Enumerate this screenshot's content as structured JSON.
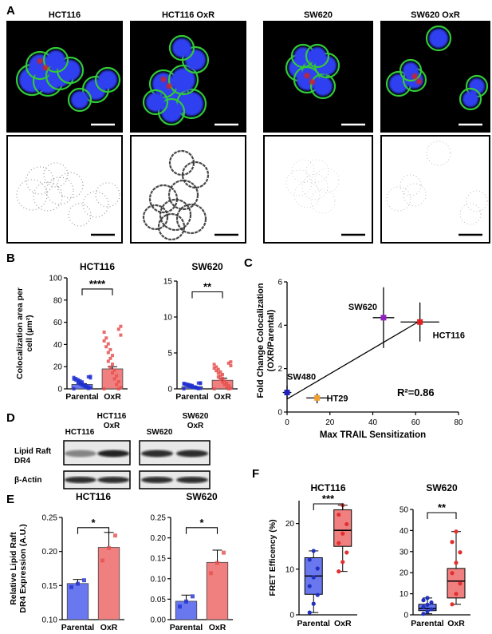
{
  "panel_labels": {
    "a": "A",
    "b": "B",
    "c": "C",
    "d": "D",
    "e": "E",
    "f": "F"
  },
  "micro": {
    "titles": [
      "HCT116",
      "HCT116 OxR",
      "SW620",
      "SW620 OxR"
    ],
    "colors": {
      "nucleus": "#2f3ff0",
      "membrane": "#33cc33",
      "raft": "#d02020"
    }
  },
  "chart_data": [
    {
      "id": "B1",
      "type": "bar",
      "title": "HCT116",
      "ylabel": "Colocalization area per cell (µm²)",
      "categories": [
        "Parental",
        "OxR"
      ],
      "values": [
        4,
        18
      ],
      "errors": [
        0.6,
        2.0
      ],
      "ylim": [
        0,
        100
      ],
      "yticks": [
        "0",
        "20",
        "40",
        "60",
        "80",
        "100"
      ],
      "sig": "****",
      "colors": [
        "#6a78f0",
        "#f08080"
      ]
    },
    {
      "id": "B2",
      "type": "bar",
      "title": "SW620",
      "ylabel": "",
      "categories": [
        "Parental",
        "OxR"
      ],
      "values": [
        0.3,
        1.2
      ],
      "errors": [
        0.1,
        0.3
      ],
      "ylim": [
        0,
        15
      ],
      "yticks": [
        "0",
        "5",
        "10",
        "15"
      ],
      "sig": "**",
      "colors": [
        "#6a78f0",
        "#f08080"
      ]
    },
    {
      "id": "C",
      "type": "scatter",
      "title": "",
      "xlabel": "Max TRAIL Sensitization",
      "ylabel": "Fold Change Colocalization (OXR/Parental)",
      "xlim": [
        0,
        80
      ],
      "ylim": [
        0,
        6
      ],
      "xticks": [
        "0",
        "20",
        "40",
        "60",
        "80"
      ],
      "yticks": [
        "0",
        "2",
        "4",
        "6"
      ],
      "annotation": "R²=0.86",
      "points": [
        {
          "label": "SW480",
          "x": 0,
          "y": 0.9,
          "color": "#2020c0"
        },
        {
          "label": "HT29",
          "x": 14,
          "y": 0.65,
          "color": "#f0a030"
        },
        {
          "label": "SW620",
          "x": 45,
          "y": 4.35,
          "color": "#9020c0"
        },
        {
          "label": "HCT116",
          "x": 62,
          "y": 4.15,
          "color": "#e02020"
        }
      ]
    },
    {
      "id": "E1",
      "type": "bar",
      "title": "HCT116",
      "ylabel": "Relative Lipid Raft DR4 Expression (A.U.)",
      "categories": [
        "Parental",
        "OxR"
      ],
      "values": [
        0.153,
        0.206
      ],
      "errors": [
        0.006,
        0.022
      ],
      "ylim": [
        0.1,
        0.25
      ],
      "yticks": [
        "0.10",
        "0.15",
        "0.20",
        "0.25"
      ],
      "sig": "*",
      "colors": [
        "#6a78f0",
        "#f08080"
      ]
    },
    {
      "id": "E2",
      "type": "bar",
      "title": "SW620",
      "ylabel": "",
      "categories": [
        "Parental",
        "OxR"
      ],
      "values": [
        0.045,
        0.14
      ],
      "errors": [
        0.015,
        0.03
      ],
      "ylim": [
        0,
        0.25
      ],
      "yticks": [
        "0.00",
        "0.05",
        "0.10",
        "0.15",
        "0.20",
        "0.25"
      ],
      "sig": "*",
      "colors": [
        "#6a78f0",
        "#f08080"
      ]
    },
    {
      "id": "F1",
      "type": "boxplot",
      "title": "HCT116",
      "ylabel": "FRET Efficency (%)",
      "categories": [
        "Parental",
        "OxR"
      ],
      "ylim": [
        0,
        25
      ],
      "yticks": [
        "0",
        "10",
        "20"
      ],
      "sig": "***",
      "boxes": [
        {
          "min": 0.5,
          "q1": 4.5,
          "median": 8.5,
          "q3": 12.5,
          "max": 14
        },
        {
          "min": 9.5,
          "q1": 15,
          "median": 18.5,
          "q3": 23,
          "max": 24
        }
      ]
    },
    {
      "id": "F2",
      "type": "boxplot",
      "title": "SW620",
      "ylabel": "",
      "categories": [
        "Parental",
        "OxR"
      ],
      "ylim": [
        0,
        50
      ],
      "yticks": [
        "0",
        "10",
        "20",
        "30",
        "40",
        "50"
      ],
      "sig": "**",
      "boxes": [
        {
          "min": 0.5,
          "q1": 2,
          "median": 3,
          "q3": 5,
          "max": 8
        },
        {
          "min": 5,
          "q1": 8,
          "median": 16,
          "q3": 22,
          "max": 39.5
        }
      ]
    }
  ],
  "western": {
    "top_labels": [
      "HCT116",
      "HCT116\nOxR",
      "SW620",
      "SW620\nOxR"
    ],
    "row_labels": [
      "Lipid Raft",
      "DR4",
      "β-Actin"
    ]
  }
}
